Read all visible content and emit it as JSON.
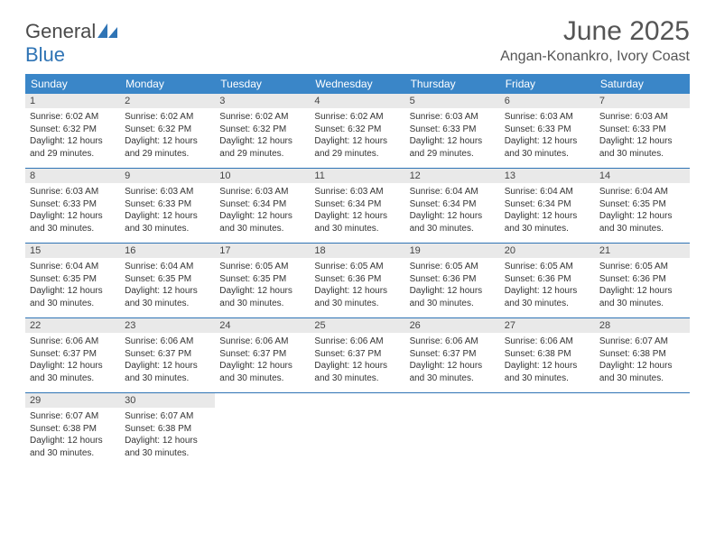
{
  "brand": {
    "part1": "General",
    "part2": "Blue"
  },
  "title": {
    "month": "June 2025",
    "location": "Angan-Konankro, Ivory Coast"
  },
  "colors": {
    "header_bg": "#3a86c8",
    "brand_blue": "#2f74b5",
    "daynum_bg": "#e9e9e9",
    "text": "#333333",
    "title_text": "#555555",
    "rule": "#2f74b5",
    "page_bg": "#ffffff"
  },
  "layout": {
    "columns": 7,
    "rows": 5
  },
  "days_of_week": [
    "Sunday",
    "Monday",
    "Tuesday",
    "Wednesday",
    "Thursday",
    "Friday",
    "Saturday"
  ],
  "days": [
    {
      "n": "1",
      "sunrise": "Sunrise: 6:02 AM",
      "sunset": "Sunset: 6:32 PM",
      "dl1": "Daylight: 12 hours",
      "dl2": "and 29 minutes."
    },
    {
      "n": "2",
      "sunrise": "Sunrise: 6:02 AM",
      "sunset": "Sunset: 6:32 PM",
      "dl1": "Daylight: 12 hours",
      "dl2": "and 29 minutes."
    },
    {
      "n": "3",
      "sunrise": "Sunrise: 6:02 AM",
      "sunset": "Sunset: 6:32 PM",
      "dl1": "Daylight: 12 hours",
      "dl2": "and 29 minutes."
    },
    {
      "n": "4",
      "sunrise": "Sunrise: 6:02 AM",
      "sunset": "Sunset: 6:32 PM",
      "dl1": "Daylight: 12 hours",
      "dl2": "and 29 minutes."
    },
    {
      "n": "5",
      "sunrise": "Sunrise: 6:03 AM",
      "sunset": "Sunset: 6:33 PM",
      "dl1": "Daylight: 12 hours",
      "dl2": "and 29 minutes."
    },
    {
      "n": "6",
      "sunrise": "Sunrise: 6:03 AM",
      "sunset": "Sunset: 6:33 PM",
      "dl1": "Daylight: 12 hours",
      "dl2": "and 30 minutes."
    },
    {
      "n": "7",
      "sunrise": "Sunrise: 6:03 AM",
      "sunset": "Sunset: 6:33 PM",
      "dl1": "Daylight: 12 hours",
      "dl2": "and 30 minutes."
    },
    {
      "n": "8",
      "sunrise": "Sunrise: 6:03 AM",
      "sunset": "Sunset: 6:33 PM",
      "dl1": "Daylight: 12 hours",
      "dl2": "and 30 minutes."
    },
    {
      "n": "9",
      "sunrise": "Sunrise: 6:03 AM",
      "sunset": "Sunset: 6:33 PM",
      "dl1": "Daylight: 12 hours",
      "dl2": "and 30 minutes."
    },
    {
      "n": "10",
      "sunrise": "Sunrise: 6:03 AM",
      "sunset": "Sunset: 6:34 PM",
      "dl1": "Daylight: 12 hours",
      "dl2": "and 30 minutes."
    },
    {
      "n": "11",
      "sunrise": "Sunrise: 6:03 AM",
      "sunset": "Sunset: 6:34 PM",
      "dl1": "Daylight: 12 hours",
      "dl2": "and 30 minutes."
    },
    {
      "n": "12",
      "sunrise": "Sunrise: 6:04 AM",
      "sunset": "Sunset: 6:34 PM",
      "dl1": "Daylight: 12 hours",
      "dl2": "and 30 minutes."
    },
    {
      "n": "13",
      "sunrise": "Sunrise: 6:04 AM",
      "sunset": "Sunset: 6:34 PM",
      "dl1": "Daylight: 12 hours",
      "dl2": "and 30 minutes."
    },
    {
      "n": "14",
      "sunrise": "Sunrise: 6:04 AM",
      "sunset": "Sunset: 6:35 PM",
      "dl1": "Daylight: 12 hours",
      "dl2": "and 30 minutes."
    },
    {
      "n": "15",
      "sunrise": "Sunrise: 6:04 AM",
      "sunset": "Sunset: 6:35 PM",
      "dl1": "Daylight: 12 hours",
      "dl2": "and 30 minutes."
    },
    {
      "n": "16",
      "sunrise": "Sunrise: 6:04 AM",
      "sunset": "Sunset: 6:35 PM",
      "dl1": "Daylight: 12 hours",
      "dl2": "and 30 minutes."
    },
    {
      "n": "17",
      "sunrise": "Sunrise: 6:05 AM",
      "sunset": "Sunset: 6:35 PM",
      "dl1": "Daylight: 12 hours",
      "dl2": "and 30 minutes."
    },
    {
      "n": "18",
      "sunrise": "Sunrise: 6:05 AM",
      "sunset": "Sunset: 6:36 PM",
      "dl1": "Daylight: 12 hours",
      "dl2": "and 30 minutes."
    },
    {
      "n": "19",
      "sunrise": "Sunrise: 6:05 AM",
      "sunset": "Sunset: 6:36 PM",
      "dl1": "Daylight: 12 hours",
      "dl2": "and 30 minutes."
    },
    {
      "n": "20",
      "sunrise": "Sunrise: 6:05 AM",
      "sunset": "Sunset: 6:36 PM",
      "dl1": "Daylight: 12 hours",
      "dl2": "and 30 minutes."
    },
    {
      "n": "21",
      "sunrise": "Sunrise: 6:05 AM",
      "sunset": "Sunset: 6:36 PM",
      "dl1": "Daylight: 12 hours",
      "dl2": "and 30 minutes."
    },
    {
      "n": "22",
      "sunrise": "Sunrise: 6:06 AM",
      "sunset": "Sunset: 6:37 PM",
      "dl1": "Daylight: 12 hours",
      "dl2": "and 30 minutes."
    },
    {
      "n": "23",
      "sunrise": "Sunrise: 6:06 AM",
      "sunset": "Sunset: 6:37 PM",
      "dl1": "Daylight: 12 hours",
      "dl2": "and 30 minutes."
    },
    {
      "n": "24",
      "sunrise": "Sunrise: 6:06 AM",
      "sunset": "Sunset: 6:37 PM",
      "dl1": "Daylight: 12 hours",
      "dl2": "and 30 minutes."
    },
    {
      "n": "25",
      "sunrise": "Sunrise: 6:06 AM",
      "sunset": "Sunset: 6:37 PM",
      "dl1": "Daylight: 12 hours",
      "dl2": "and 30 minutes."
    },
    {
      "n": "26",
      "sunrise": "Sunrise: 6:06 AM",
      "sunset": "Sunset: 6:37 PM",
      "dl1": "Daylight: 12 hours",
      "dl2": "and 30 minutes."
    },
    {
      "n": "27",
      "sunrise": "Sunrise: 6:06 AM",
      "sunset": "Sunset: 6:38 PM",
      "dl1": "Daylight: 12 hours",
      "dl2": "and 30 minutes."
    },
    {
      "n": "28",
      "sunrise": "Sunrise: 6:07 AM",
      "sunset": "Sunset: 6:38 PM",
      "dl1": "Daylight: 12 hours",
      "dl2": "and 30 minutes."
    },
    {
      "n": "29",
      "sunrise": "Sunrise: 6:07 AM",
      "sunset": "Sunset: 6:38 PM",
      "dl1": "Daylight: 12 hours",
      "dl2": "and 30 minutes."
    },
    {
      "n": "30",
      "sunrise": "Sunrise: 6:07 AM",
      "sunset": "Sunset: 6:38 PM",
      "dl1": "Daylight: 12 hours",
      "dl2": "and 30 minutes."
    }
  ]
}
